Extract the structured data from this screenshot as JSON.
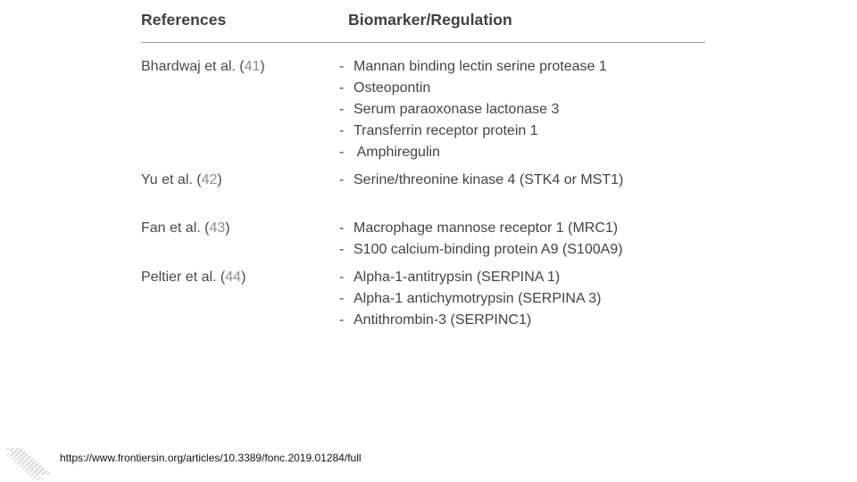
{
  "table": {
    "header": {
      "references": "References",
      "biomarker": "Biomarker/Regulation"
    },
    "rows": [
      {
        "author": "Bhardwaj et al. (",
        "cite": "41",
        "close": ")",
        "items": [
          "Mannan binding lectin serine protease 1",
          "Osteopontin",
          "Serum paraoxonase lactonase 3",
          "Transferrin receptor protein 1",
          " Amphiregulin"
        ]
      },
      {
        "author": "Yu et al. (",
        "cite": "42",
        "close": ")",
        "items": [
          "Serine/threonine kinase 4 (STK4 or MST1)"
        ]
      },
      {
        "author": "Fan et al. (",
        "cite": "43",
        "close": ")",
        "items": [
          "Macrophage mannose receptor 1 (MRC1)",
          "S100 calcium-binding protein A9 (S100A9)"
        ]
      },
      {
        "author": "Peltier et al. (",
        "cite": "44",
        "close": ")",
        "items": [
          "Alpha-1-antitrypsin (SERPINA 1)",
          "Alpha-1 antichymotrypsin (SERPINA 3)",
          "Antithrombin-3 (SERPINC1)"
        ]
      }
    ],
    "dash": "-"
  },
  "source_url": "https://www.frontiersin.org/articles/10.3389/fonc.2019.01284/full",
  "colors": {
    "text": "#444444",
    "citation": "#8d8d8d",
    "rule": "#9a9a9a",
    "logo": "#d9d9d9"
  },
  "icons": {
    "corner_logo": "striped-chevron-logo-icon"
  }
}
